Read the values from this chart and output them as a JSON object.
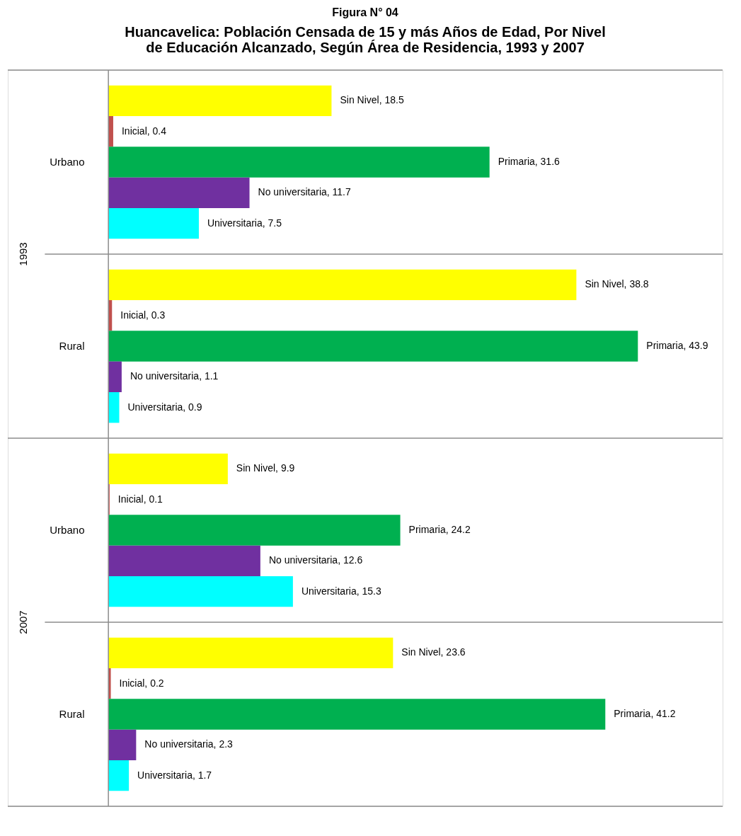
{
  "chart_data": {
    "type": "bar",
    "orientation": "horizontal",
    "title": [
      "Huancavelica: Población Censada de 15 y más Años de Edad, Por Nivel",
      "de Educación Alcanzado, Según Área de Residencia, 1993 y 2007"
    ],
    "categories": [
      "Urbano",
      "Rural",
      "Urbano",
      "Rural"
    ],
    "series": [
      {
        "color": "#ffff00",
        "values": [
          18.5,
          38.8,
          9.9,
          23.6
        ],
        "value_labels": [
          "Sin Nivel, 18.5",
          "Sin Nivel, 38.8",
          "Sin Nivel, 9.9",
          "Sin Nivel, 23.6"
        ]
      },
      {
        "color": "#c0504d",
        "values": [
          0.4,
          0.3,
          0.1,
          0.2
        ],
        "value_labels": [
          "Inicial, 0.4",
          "Inicial, 0.3",
          "Inicial, 0.1",
          "Inicial, 0.2"
        ]
      },
      {
        "color": "#00b050",
        "values": [
          31.6,
          43.9,
          24.2,
          41.2
        ],
        "value_labels": [
          "Primaria, 31.6",
          "Primaria, 43.9",
          "Primaria, 24.2",
          "Primaria, 41.2"
        ]
      },
      {
        "color": "#7030a0",
        "values": [
          11.7,
          1.1,
          12.6,
          2.3
        ],
        "value_labels": [
          "No universitaria, 11.7",
          "No universitaria, 1.1",
          "No universitaria, 12.6",
          "No universitaria, 2.3"
        ]
      },
      {
        "color": "#00ffff",
        "values": [
          7.5,
          0.9,
          15.3,
          1.7
        ],
        "value_labels": [
          "Universitaria, 7.5",
          "Universitaria, 0.9",
          "Universitaria, 15.3",
          "Universitaria, 1.7"
        ]
      }
    ],
    "legend": false,
    "grid": "y",
    "annotations": [
      "Figura N° 04",
      "1993",
      "2007"
    ]
  }
}
